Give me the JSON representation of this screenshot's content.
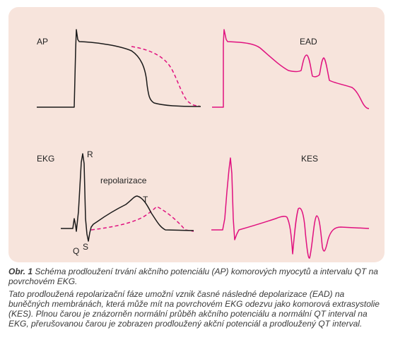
{
  "figure": {
    "colors": {
      "panel_bg": "#f7e4dc",
      "normal_line": "#1a1a1a",
      "prolonged_line": "#e0117f"
    },
    "labels": {
      "ap": "AP",
      "ead": "EAD",
      "ekg": "EKG",
      "kes": "KES",
      "r": "R",
      "q": "Q",
      "s": "S",
      "t": "T",
      "repolarization": "repolarizace"
    }
  },
  "caption": {
    "number": "Obr. 1",
    "title": "Schéma prodloužení trvání akčního potenciálu (AP) komorových myocytů a intervalu QT na povrchovém EKG.",
    "body": "Tato prodloužená repolarizační fáze umožní vznik časné následné depolarizace (EAD) na buněčných membránách, která může mít na povrchovém EKG odezvu jako komorová extrasystolie (KES). Plnou čarou je znázorněn normální průběh akčního potenciálu a normální QT interval na EKG, přerušovanou čarou je zobrazen prodloužený akční potenciál a prodloužený QT interval."
  }
}
